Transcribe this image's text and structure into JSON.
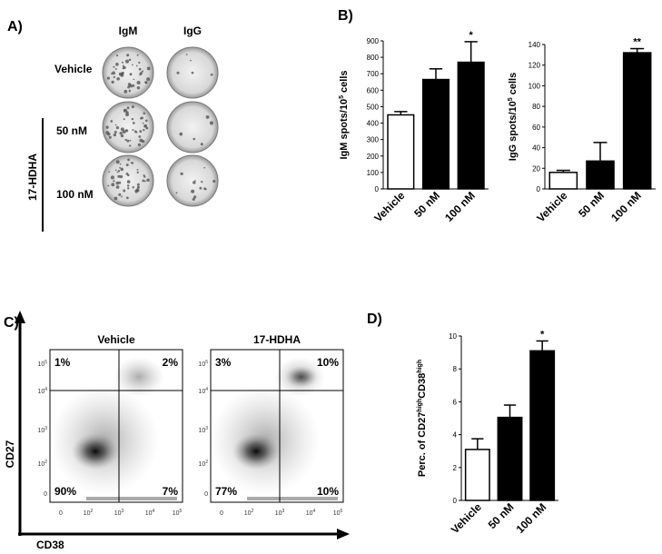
{
  "panels": {
    "labels": [
      "A)",
      "B)",
      "C)",
      "D)"
    ]
  },
  "wells": {
    "columns": [
      "IgM",
      "IgG"
    ],
    "rows": [
      "Vehicle",
      "50 nM",
      "100 nM"
    ],
    "group": "17-HDHA"
  },
  "flow": {
    "plots": [
      {
        "title": "Vehicle",
        "quadrants": [
          "1%",
          "2%",
          "90%",
          "7%"
        ]
      },
      {
        "title": "17-HDHA",
        "quadrants": [
          "3%",
          "10%",
          "77%",
          "10%"
        ]
      }
    ],
    "ylabel": "CD27",
    "xlabel": "CD38",
    "ticks": [
      {
        "base": "0"
      },
      {
        "base": "10",
        "exp": "2"
      },
      {
        "base": "10",
        "exp": "3"
      },
      {
        "base": "10",
        "exp": "4"
      },
      {
        "base": "10",
        "exp": "5"
      }
    ]
  },
  "chart_data": [
    {
      "type": "bar",
      "ylabel": {
        "text": "IgM spots/10",
        "sup": "5",
        "rest": " cells"
      },
      "categories": [
        "Vehicle",
        "50 nM",
        "100 nM"
      ],
      "values": [
        450,
        665,
        770
      ],
      "errors": [
        20,
        65,
        125
      ],
      "colors": [
        "#ffffff",
        "#000000",
        "#000000"
      ],
      "ylim": [
        0,
        900
      ],
      "yticks": [
        0,
        100,
        200,
        300,
        400,
        500,
        600,
        700,
        800,
        900
      ],
      "annotation": {
        "category": "100 nM",
        "text": "*"
      }
    },
    {
      "type": "bar",
      "ylabel": {
        "text": "IgG spots/10",
        "sup": "5",
        "rest": " cells"
      },
      "categories": [
        "Vehicle",
        "50 nM",
        "100 nM"
      ],
      "values": [
        16,
        27,
        132
      ],
      "errors": [
        2,
        18,
        4
      ],
      "colors": [
        "#ffffff",
        "#000000",
        "#000000"
      ],
      "ylim": [
        0,
        140
      ],
      "yticks": [
        0,
        20,
        40,
        60,
        80,
        100,
        120,
        140
      ],
      "annotation": {
        "category": "100 nM",
        "text": "**"
      }
    },
    {
      "type": "bar",
      "ylabel": {
        "text": "Perc. of CD27",
        "sup": "high",
        "rest": "CD38",
        "sup2": "high"
      },
      "categories": [
        "Vehicle",
        "50 nM",
        "100 nM"
      ],
      "values": [
        3.1,
        5.05,
        9.1
      ],
      "errors": [
        0.65,
        0.75,
        0.6
      ],
      "colors": [
        "#ffffff",
        "#000000",
        "#000000"
      ],
      "ylim": [
        0,
        10
      ],
      "yticks": [
        0,
        2,
        4,
        6,
        8,
        10
      ],
      "annotation": {
        "category": "100 nM",
        "text": "*"
      }
    }
  ]
}
